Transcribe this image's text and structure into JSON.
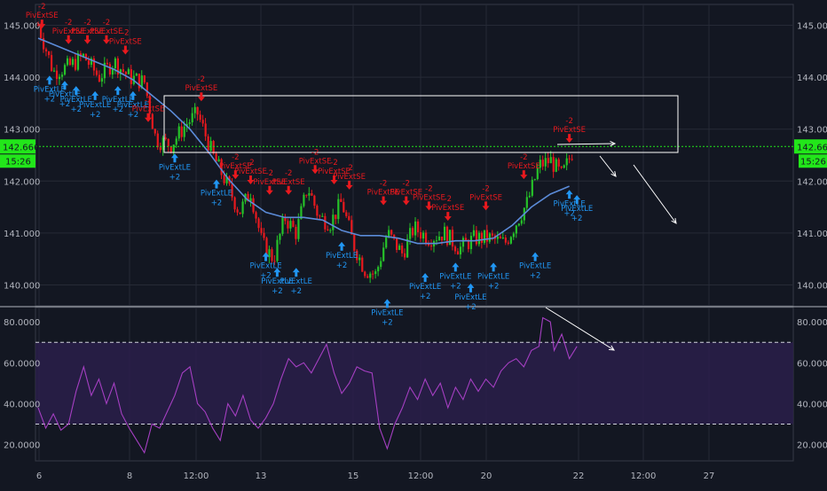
{
  "chart_data": [
    {
      "type": "candlestick",
      "title": "",
      "x_labels": [
        "6",
        "8",
        "12:00",
        "13",
        "15",
        "12:00",
        "20",
        "22",
        "12:00",
        "27"
      ],
      "y_ticks": [
        "145.000",
        "144.000",
        "143.000",
        "142.000",
        "141.000",
        "140.000"
      ],
      "y_ticks_values": [
        145,
        144,
        143,
        142,
        141,
        140
      ],
      "ylim": [
        139.6,
        145.4
      ],
      "current_price": "142.666",
      "current_price_value": 142.666,
      "countdown": "15:26",
      "moving_average": [
        {
          "x": 0,
          "y": 144.75
        },
        {
          "x": 10,
          "y": 144.6
        },
        {
          "x": 20,
          "y": 144.45
        },
        {
          "x": 30,
          "y": 144.3
        },
        {
          "x": 40,
          "y": 144.15
        },
        {
          "x": 50,
          "y": 143.95
        },
        {
          "x": 60,
          "y": 143.65
        },
        {
          "x": 70,
          "y": 143.35
        },
        {
          "x": 80,
          "y": 143.0
        },
        {
          "x": 90,
          "y": 142.55
        },
        {
          "x": 100,
          "y": 142.05
        },
        {
          "x": 110,
          "y": 141.65
        },
        {
          "x": 120,
          "y": 141.4
        },
        {
          "x": 130,
          "y": 141.3
        },
        {
          "x": 140,
          "y": 141.3
        },
        {
          "x": 150,
          "y": 141.25
        },
        {
          "x": 160,
          "y": 141.05
        },
        {
          "x": 170,
          "y": 140.95
        },
        {
          "x": 180,
          "y": 140.95
        },
        {
          "x": 190,
          "y": 140.9
        },
        {
          "x": 200,
          "y": 140.8
        },
        {
          "x": 210,
          "y": 140.8
        },
        {
          "x": 220,
          "y": 140.85
        },
        {
          "x": 230,
          "y": 140.85
        },
        {
          "x": 240,
          "y": 140.9
        },
        {
          "x": 250,
          "y": 141.15
        },
        {
          "x": 260,
          "y": 141.5
        },
        {
          "x": 270,
          "y": 141.75
        },
        {
          "x": 280,
          "y": 141.9
        }
      ],
      "price_path": [
        {
          "x": 0,
          "y": 145.0
        },
        {
          "x": 8,
          "y": 144.1
        },
        {
          "x": 16,
          "y": 144.2
        },
        {
          "x": 24,
          "y": 144.4
        },
        {
          "x": 32,
          "y": 144.0
        },
        {
          "x": 40,
          "y": 144.3
        },
        {
          "x": 48,
          "y": 144.0
        },
        {
          "x": 56,
          "y": 143.9
        },
        {
          "x": 62,
          "y": 142.8
        },
        {
          "x": 70,
          "y": 142.7
        },
        {
          "x": 78,
          "y": 143.1
        },
        {
          "x": 84,
          "y": 143.3
        },
        {
          "x": 92,
          "y": 142.5
        },
        {
          "x": 100,
          "y": 141.9
        },
        {
          "x": 106,
          "y": 141.4
        },
        {
          "x": 112,
          "y": 141.8
        },
        {
          "x": 118,
          "y": 140.8
        },
        {
          "x": 124,
          "y": 140.5
        },
        {
          "x": 130,
          "y": 141.3
        },
        {
          "x": 136,
          "y": 141.0
        },
        {
          "x": 142,
          "y": 141.9
        },
        {
          "x": 148,
          "y": 141.3
        },
        {
          "x": 154,
          "y": 141.2
        },
        {
          "x": 160,
          "y": 141.6
        },
        {
          "x": 166,
          "y": 140.8
        },
        {
          "x": 172,
          "y": 140.3
        },
        {
          "x": 178,
          "y": 140.2
        },
        {
          "x": 184,
          "y": 141.0
        },
        {
          "x": 192,
          "y": 140.6
        },
        {
          "x": 198,
          "y": 141.1
        },
        {
          "x": 206,
          "y": 140.9
        },
        {
          "x": 214,
          "y": 141.0
        },
        {
          "x": 222,
          "y": 140.7
        },
        {
          "x": 230,
          "y": 140.9
        },
        {
          "x": 238,
          "y": 140.9
        },
        {
          "x": 246,
          "y": 140.8
        },
        {
          "x": 252,
          "y": 141.2
        },
        {
          "x": 258,
          "y": 141.6
        },
        {
          "x": 264,
          "y": 142.3
        },
        {
          "x": 270,
          "y": 142.4
        },
        {
          "x": 276,
          "y": 142.1
        },
        {
          "x": 282,
          "y": 142.6
        }
      ],
      "buy_signals": [
        {
          "label": "PivExtLE",
          "sub": "+2",
          "x": 6,
          "y": 144.2
        },
        {
          "label": "PivExtLE",
          "sub": "+2",
          "x": 14,
          "y": 144.1
        },
        {
          "label": "PivExtLE",
          "sub": "+2",
          "x": 20,
          "y": 144.0
        },
        {
          "label": "PivExtLE",
          "sub": "+2",
          "x": 30,
          "y": 143.9
        },
        {
          "label": "PivExtLE",
          "sub": "+2",
          "x": 42,
          "y": 144.0
        },
        {
          "label": "PivExtLE",
          "sub": "+2",
          "x": 50,
          "y": 143.9
        },
        {
          "label": "PivExtLE",
          "sub": "+2",
          "x": 72,
          "y": 142.7
        },
        {
          "label": "PivExtLE",
          "sub": "+2",
          "x": 94,
          "y": 142.2
        },
        {
          "label": "PivExtLE",
          "sub": "+2",
          "x": 120,
          "y": 140.8
        },
        {
          "label": "PivExtLE",
          "sub": "+2",
          "x": 126,
          "y": 140.5
        },
        {
          "label": "PivExtLE",
          "sub": "+2",
          "x": 136,
          "y": 140.5
        },
        {
          "label": "PivExtLE",
          "sub": "+2",
          "x": 160,
          "y": 141.0
        },
        {
          "label": "PivExtLE",
          "sub": "+2",
          "x": 184,
          "y": 139.9
        },
        {
          "label": "PivExtLE",
          "sub": "+2",
          "x": 204,
          "y": 140.4
        },
        {
          "label": "PivExtLE",
          "sub": "+2",
          "x": 220,
          "y": 140.6
        },
        {
          "label": "PivExtLE",
          "sub": "+2",
          "x": 228,
          "y": 140.2
        },
        {
          "label": "PivExtLE",
          "sub": "+2",
          "x": 240,
          "y": 140.6
        },
        {
          "label": "PivExtLE",
          "sub": "+2",
          "x": 262,
          "y": 140.8
        },
        {
          "label": "PivExtLE",
          "sub": "+2",
          "x": 280,
          "y": 142.0
        },
        {
          "label": "PivExtLE",
          "sub": "+2",
          "x": 284,
          "y": 141.9
        }
      ],
      "sell_signals": [
        {
          "label": "PivExtSE",
          "sub": "-2",
          "x": 2,
          "y": 144.8
        },
        {
          "label": "PivExtSE",
          "sub": "-2",
          "x": 16,
          "y": 144.5
        },
        {
          "label": "PivExtSE",
          "sub": "-2",
          "x": 26,
          "y": 144.5
        },
        {
          "label": "PivExtSE",
          "sub": "-2",
          "x": 36,
          "y": 144.5
        },
        {
          "label": "PivExtSE",
          "sub": "-2",
          "x": 46,
          "y": 144.3
        },
        {
          "label": "PivExtSE",
          "sub": "-2",
          "x": 58,
          "y": 143.0
        },
        {
          "label": "PivExtSE",
          "sub": "-2",
          "x": 86,
          "y": 143.4
        },
        {
          "label": "PivExtSE",
          "sub": "-2",
          "x": 104,
          "y": 141.9
        },
        {
          "label": "PivExtSE",
          "sub": "-2",
          "x": 112,
          "y": 141.8
        },
        {
          "label": "PivExtSE",
          "sub": "-2",
          "x": 122,
          "y": 141.6
        },
        {
          "label": "PivExtSE",
          "sub": "-2",
          "x": 132,
          "y": 141.6
        },
        {
          "label": "PivExtSE",
          "sub": "-2",
          "x": 146,
          "y": 142.0
        },
        {
          "label": "PivExtSE",
          "sub": "-2",
          "x": 156,
          "y": 141.8
        },
        {
          "label": "PivExtSE",
          "sub": "-2",
          "x": 164,
          "y": 141.7
        },
        {
          "label": "PivExtSE",
          "sub": "-2",
          "x": 182,
          "y": 141.4
        },
        {
          "label": "PivExtSE",
          "sub": "-2",
          "x": 194,
          "y": 141.4
        },
        {
          "label": "PivExtSE",
          "sub": "-2",
          "x": 206,
          "y": 141.3
        },
        {
          "label": "PivExtSE",
          "sub": "-2",
          "x": 216,
          "y": 141.1
        },
        {
          "label": "PivExtSE",
          "sub": "-2",
          "x": 236,
          "y": 141.3
        },
        {
          "label": "PivExtSE",
          "sub": "-2",
          "x": 256,
          "y": 141.9
        },
        {
          "label": "PivExtSE",
          "sub": "-2",
          "x": 280,
          "y": 142.6
        }
      ]
    },
    {
      "type": "line",
      "title": "",
      "y_ticks": [
        "80.0000",
        "60.0000",
        "40.0000",
        "20.0000"
      ],
      "y_ticks_values": [
        80,
        60,
        40,
        20
      ],
      "ylim": [
        12,
        87
      ],
      "overbought": 70,
      "oversold": 30,
      "rsi_path": [
        {
          "x": 0,
          "y": 38
        },
        {
          "x": 4,
          "y": 28
        },
        {
          "x": 8,
          "y": 35
        },
        {
          "x": 12,
          "y": 27
        },
        {
          "x": 16,
          "y": 30
        },
        {
          "x": 20,
          "y": 46
        },
        {
          "x": 24,
          "y": 58
        },
        {
          "x": 28,
          "y": 44
        },
        {
          "x": 32,
          "y": 52
        },
        {
          "x": 36,
          "y": 40
        },
        {
          "x": 40,
          "y": 50
        },
        {
          "x": 44,
          "y": 35
        },
        {
          "x": 48,
          "y": 28
        },
        {
          "x": 52,
          "y": 22
        },
        {
          "x": 56,
          "y": 16
        },
        {
          "x": 60,
          "y": 30
        },
        {
          "x": 64,
          "y": 28
        },
        {
          "x": 68,
          "y": 36
        },
        {
          "x": 72,
          "y": 44
        },
        {
          "x": 76,
          "y": 55
        },
        {
          "x": 80,
          "y": 58
        },
        {
          "x": 84,
          "y": 40
        },
        {
          "x": 88,
          "y": 36
        },
        {
          "x": 92,
          "y": 28
        },
        {
          "x": 96,
          "y": 22
        },
        {
          "x": 100,
          "y": 40
        },
        {
          "x": 104,
          "y": 34
        },
        {
          "x": 108,
          "y": 44
        },
        {
          "x": 112,
          "y": 32
        },
        {
          "x": 116,
          "y": 28
        },
        {
          "x": 120,
          "y": 33
        },
        {
          "x": 124,
          "y": 40
        },
        {
          "x": 128,
          "y": 52
        },
        {
          "x": 132,
          "y": 62
        },
        {
          "x": 136,
          "y": 58
        },
        {
          "x": 140,
          "y": 60
        },
        {
          "x": 144,
          "y": 55
        },
        {
          "x": 148,
          "y": 62
        },
        {
          "x": 152,
          "y": 69
        },
        {
          "x": 156,
          "y": 55
        },
        {
          "x": 160,
          "y": 45
        },
        {
          "x": 164,
          "y": 50
        },
        {
          "x": 168,
          "y": 58
        },
        {
          "x": 172,
          "y": 56
        },
        {
          "x": 176,
          "y": 55
        },
        {
          "x": 180,
          "y": 28
        },
        {
          "x": 184,
          "y": 18
        },
        {
          "x": 188,
          "y": 30
        },
        {
          "x": 192,
          "y": 38
        },
        {
          "x": 196,
          "y": 48
        },
        {
          "x": 200,
          "y": 42
        },
        {
          "x": 204,
          "y": 52
        },
        {
          "x": 208,
          "y": 44
        },
        {
          "x": 212,
          "y": 50
        },
        {
          "x": 216,
          "y": 38
        },
        {
          "x": 220,
          "y": 48
        },
        {
          "x": 224,
          "y": 42
        },
        {
          "x": 228,
          "y": 52
        },
        {
          "x": 232,
          "y": 46
        },
        {
          "x": 236,
          "y": 52
        },
        {
          "x": 240,
          "y": 48
        },
        {
          "x": 244,
          "y": 56
        },
        {
          "x": 248,
          "y": 60
        },
        {
          "x": 252,
          "y": 62
        },
        {
          "x": 256,
          "y": 58
        },
        {
          "x": 260,
          "y": 66
        },
        {
          "x": 264,
          "y": 68
        },
        {
          "x": 266,
          "y": 82
        },
        {
          "x": 270,
          "y": 80
        },
        {
          "x": 272,
          "y": 66
        },
        {
          "x": 276,
          "y": 74
        },
        {
          "x": 280,
          "y": 62
        },
        {
          "x": 284,
          "y": 68
        }
      ]
    }
  ]
}
